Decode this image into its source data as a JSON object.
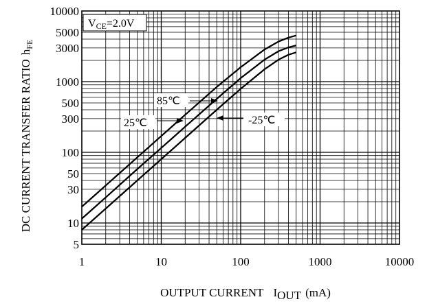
{
  "chart_data": {
    "type": "line",
    "title": "",
    "x_axis": {
      "label_main": "OUTPUT CURRENT",
      "label_symbol": "I",
      "label_subscript": "OUT",
      "label_unit": "(mA)",
      "scale": "log",
      "range": [
        1,
        10000
      ],
      "tick_labels": [
        "1",
        "10",
        "100",
        "1000",
        "10000"
      ]
    },
    "y_axis": {
      "label_main": "DC CURRENT TRANSFER RATIO",
      "label_symbol": "h",
      "label_subscript": "FE",
      "scale": "log",
      "range": [
        5,
        10000
      ],
      "tick_labels": [
        {
          "value": 10000,
          "label": "10000"
        },
        {
          "value": 5000,
          "label": "5000"
        },
        {
          "value": 3000,
          "label": "3000"
        },
        {
          "value": 1000,
          "label": "1000"
        },
        {
          "value": 500,
          "label": "500"
        },
        {
          "value": 300,
          "label": "300"
        },
        {
          "value": 100,
          "label": "100"
        },
        {
          "value": 50,
          "label": "50"
        },
        {
          "value": 30,
          "label": "30"
        },
        {
          "value": 10,
          "label": "10"
        },
        {
          "value": 5,
          "label": "5"
        }
      ]
    },
    "grid": true,
    "condition": {
      "main": "V",
      "subscript": "CE",
      "value": "=2.0V"
    },
    "series": [
      {
        "name": "85℃",
        "x": [
          1,
          2,
          5,
          10,
          20,
          50,
          100,
          200,
          300,
          400,
          500
        ],
        "y": [
          17,
          34,
          85,
          170,
          340,
          840,
          1600,
          2850,
          3700,
          4200,
          4500
        ]
      },
      {
        "name": "25℃",
        "x": [
          1,
          2,
          5,
          10,
          20,
          50,
          100,
          200,
          300,
          400,
          500
        ],
        "y": [
          11.5,
          23,
          58,
          115,
          230,
          570,
          1120,
          2050,
          2700,
          3050,
          3250
        ]
      },
      {
        "name": "-25℃",
        "x": [
          1,
          2,
          5,
          10,
          20,
          50,
          100,
          200,
          300,
          400,
          500
        ],
        "y": [
          8,
          16,
          40,
          80,
          160,
          400,
          790,
          1500,
          2050,
          2400,
          2600
        ]
      }
    ],
    "annotations": [
      {
        "label": "85℃",
        "series": "85℃"
      },
      {
        "label": "25℃",
        "series": "25℃"
      },
      {
        "label": "-25℃",
        "series": "-25℃"
      }
    ]
  }
}
